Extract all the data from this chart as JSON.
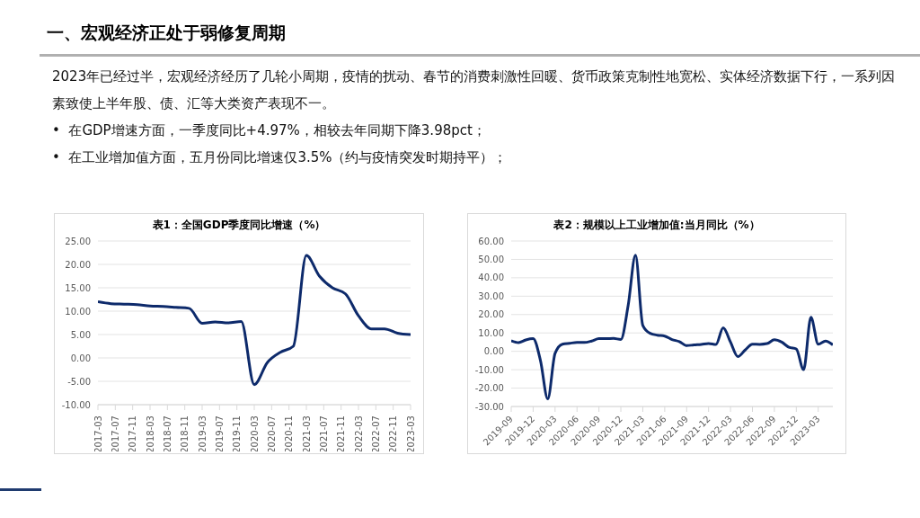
{
  "chart_data": [
    {
      "type": "other",
      "title": "一、宏观经济正处于弱修复周期",
      "annotations": [
        "2023年已经过半，宏观经济经历了几轮小周期，疫情的扰动、春节的消费刺激性回暖、货币政策克制性地宽松、实体经济数据下行，一系列因素致使上半年股、债、汇等大类资产表现不一。",
        "•  在GDP增速方面，一季度同比+4.97%，相较去年同期下降3.98pct；",
        "•  在工业增加值方面，五月份同比增速仅3.5%（约与疫情突发时期持平）；"
      ]
    },
    {
      "type": "line",
      "title": "表1：全国GDP季度同比增速（%）",
      "x": [
        "2017-03",
        "2017-06",
        "2017-09",
        "2017-12",
        "2018-03",
        "2018-06",
        "2018-09",
        "2018-12",
        "2019-03",
        "2019-06",
        "2019-09",
        "2019-12",
        "2020-03",
        "2020-06",
        "2020-09",
        "2020-12",
        "2021-03",
        "2021-06",
        "2021-09",
        "2021-12",
        "2022-03",
        "2022-06",
        "2022-09",
        "2022-12",
        "2023-03"
      ],
      "series": [
        {
          "color": "#0d2a6b",
          "values": [
            12.0,
            11.6,
            11.5,
            11.4,
            11.1,
            11.0,
            10.8,
            10.6,
            7.4,
            7.7,
            7.5,
            7.8,
            -5.7,
            -1.0,
            1.2,
            2.5,
            21.9,
            17.5,
            15.0,
            13.7,
            9.0,
            6.2,
            6.2,
            5.3,
            5.0
          ]
        }
      ],
      "xlim": [
        "2017-03",
        "2023-03"
      ],
      "xticks": [
        "2017-03",
        "2017-07",
        "2017-11",
        "2018-03",
        "2018-07",
        "2018-11",
        "2019-03",
        "2019-07",
        "2019-11",
        "2020-03",
        "2020-07",
        "2020-11",
        "2021-03",
        "2021-07",
        "2021-11",
        "2022-03",
        "2022-07",
        "2022-11",
        "2023-03"
      ],
      "ylim": [
        -10,
        25
      ],
      "yticks": [
        {
          "value": -10,
          "label": "-10.00"
        },
        {
          "value": -5,
          "label": "-5.00"
        },
        {
          "value": 0,
          "label": "0.00"
        },
        {
          "value": 5,
          "label": "5.00"
        },
        {
          "value": 10,
          "label": "10.00"
        },
        {
          "value": 15,
          "label": "15.00"
        },
        {
          "value": 20,
          "label": "20.00"
        },
        {
          "value": 25,
          "label": "25.00"
        }
      ],
      "grid": "y",
      "legend": false,
      "marker": "none",
      "line_style": "solid"
    },
    {
      "type": "line",
      "title": "表2：规模以上工业增加值:当月同比（%）",
      "x": [
        "2019-09",
        "2019-10",
        "2019-11",
        "2019-12",
        "2020-01",
        "2020-02",
        "2020-03",
        "2020-04",
        "2020-05",
        "2020-06",
        "2020-07",
        "2020-08",
        "2020-09",
        "2020-10",
        "2020-11",
        "2020-12",
        "2021-01",
        "2021-02",
        "2021-03",
        "2021-04",
        "2021-05",
        "2021-06",
        "2021-07",
        "2021-08",
        "2021-09",
        "2021-10",
        "2021-11",
        "2021-12",
        "2022-01",
        "2022-02",
        "2022-03",
        "2022-04",
        "2022-05",
        "2022-06",
        "2022-07",
        "2022-08",
        "2022-09",
        "2022-10",
        "2022-11",
        "2022-12",
        "2023-01",
        "2023-02",
        "2023-03",
        "2023-04",
        "2023-05"
      ],
      "series": [
        {
          "color": "#0d2a6b",
          "values": [
            5.8,
            4.7,
            6.2,
            6.9,
            -5,
            -25.9,
            -1.1,
            3.9,
            4.4,
            4.8,
            4.8,
            5.6,
            6.9,
            6.9,
            7.0,
            6.5,
            25,
            52.3,
            14.1,
            9.8,
            8.8,
            8.3,
            6.4,
            5.3,
            3.1,
            3.5,
            3.8,
            4.3,
            3.7,
            12.8,
            5.0,
            -2.9,
            0.7,
            3.9,
            3.8,
            4.2,
            6.3,
            5.0,
            2.2,
            1.3,
            -10,
            18.5,
            3.9,
            5.6,
            3.5
          ]
        }
      ],
      "xlim": [
        "2019-09",
        "2023-05"
      ],
      "xticks": [
        "2019-09",
        "2019-12",
        "2020-03",
        "2020-06",
        "2020-09",
        "2020-12",
        "2021-03",
        "2021-06",
        "2021-09",
        "2021-12",
        "2022-03",
        "2022-06",
        "2022-09",
        "2022-12",
        "2023-03"
      ],
      "ylim": [
        -30,
        60
      ],
      "yticks": [
        {
          "value": -30,
          "label": "-30.00"
        },
        {
          "value": -20,
          "label": "-20.00"
        },
        {
          "value": -10,
          "label": "-10.00"
        },
        {
          "value": 0,
          "label": "0.00"
        },
        {
          "value": 10,
          "label": "10.00"
        },
        {
          "value": 20,
          "label": "20.00"
        },
        {
          "value": 30,
          "label": "30.00"
        },
        {
          "value": 40,
          "label": "40.00"
        },
        {
          "value": 50,
          "label": "50.00"
        },
        {
          "value": 60,
          "label": "60.00"
        }
      ],
      "grid": "y",
      "legend": false,
      "marker": "none",
      "line_style": "solid"
    }
  ]
}
